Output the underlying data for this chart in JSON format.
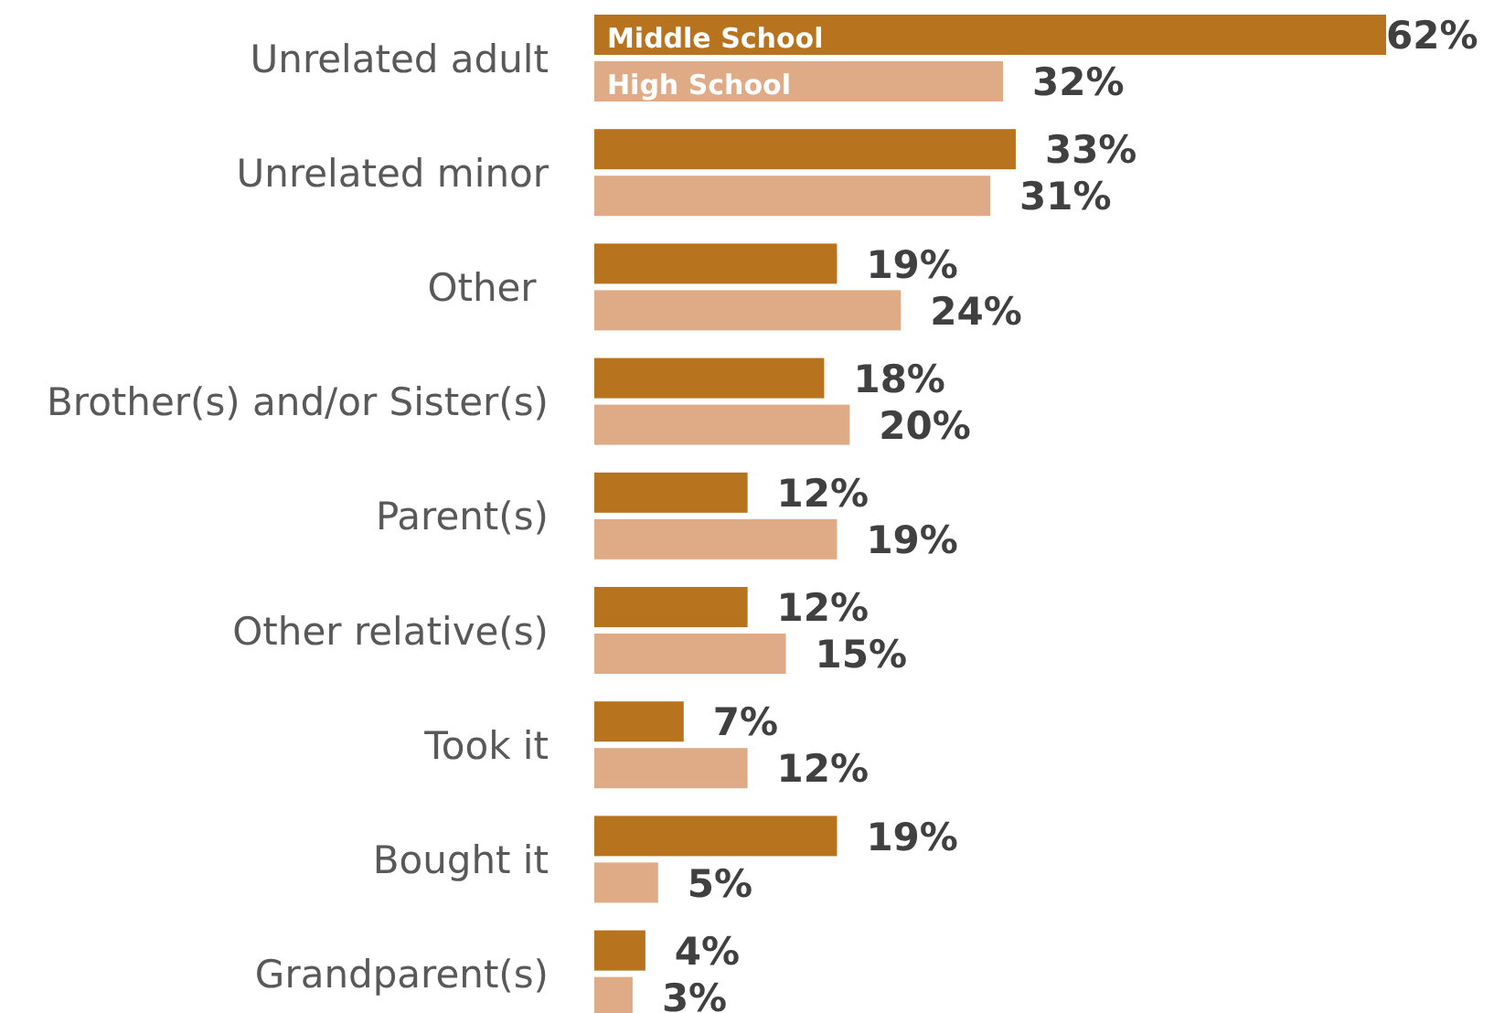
{
  "chart_data": {
    "type": "bar",
    "orientation": "horizontal",
    "categories": [
      "Unrelated adult",
      "Unrelated minor",
      "Other ",
      "Brother(s) and/or Sister(s)",
      "Parent(s)",
      "Other relative(s)",
      "Took it",
      "Bought it",
      "Grandparent(s)"
    ],
    "series": [
      {
        "name": "Middle School",
        "color": "#b8731f",
        "values": [
          62,
          33,
          19,
          18,
          12,
          12,
          7,
          19,
          4
        ],
        "value_labels": [
          "62%",
          "33%",
          "19%",
          "18%",
          "12%",
          "12%",
          "7%",
          "19%",
          "4%"
        ]
      },
      {
        "name": "High School",
        "color": "#dfab87",
        "values": [
          32,
          31,
          24,
          20,
          19,
          15,
          12,
          5,
          3
        ],
        "value_labels": [
          "32%",
          "31%",
          "24%",
          "20%",
          "19%",
          "15%",
          "12%",
          "5%",
          "3%"
        ]
      }
    ],
    "legend": false
  }
}
